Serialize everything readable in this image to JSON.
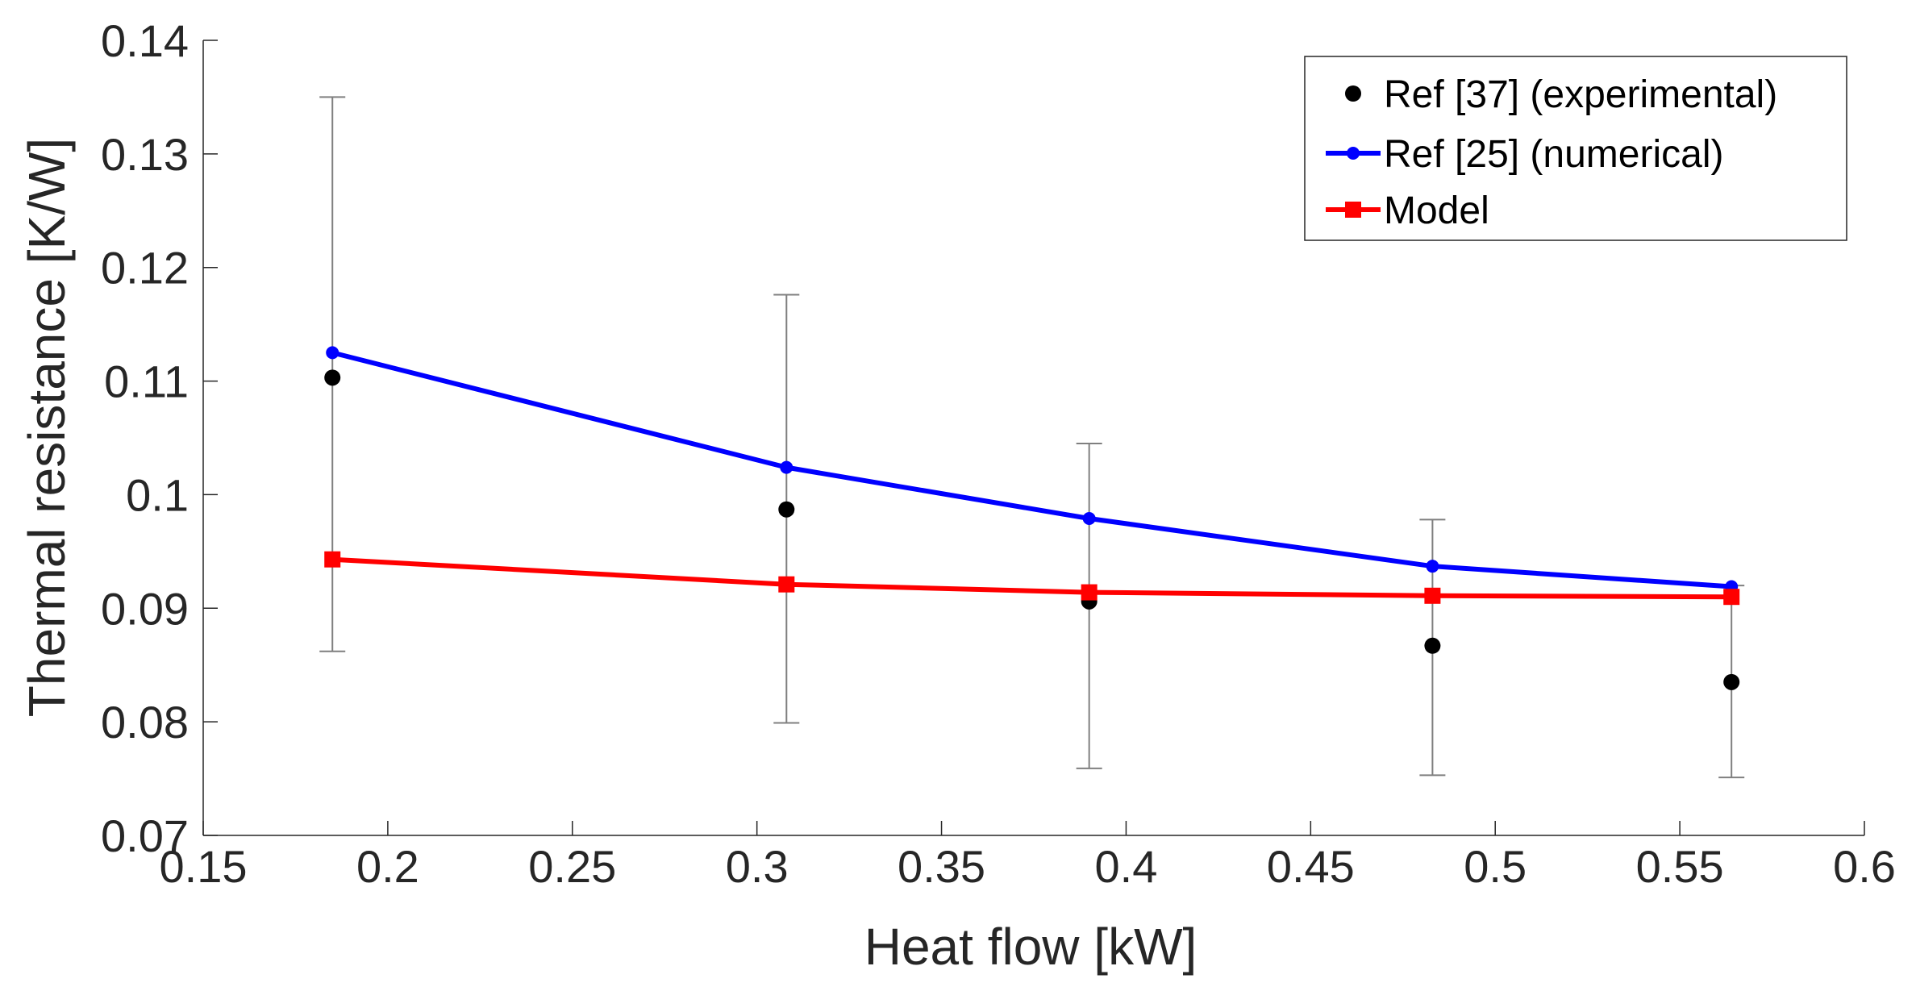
{
  "chart_data": {
    "type": "line",
    "xlabel": "Heat flow [kW]",
    "ylabel": "Thermal resistance [K/W]",
    "xlim": [
      0.15,
      0.6
    ],
    "ylim": [
      0.07,
      0.14
    ],
    "xticks": [
      0.15,
      0.2,
      0.25,
      0.3,
      0.35,
      0.4,
      0.45,
      0.5,
      0.55,
      0.6
    ],
    "xtick_labels": [
      "0.15",
      "0.2",
      "0.25",
      "0.3",
      "0.35",
      "0.4",
      "0.45",
      "0.5",
      "0.55",
      "0.6"
    ],
    "yticks": [
      0.07,
      0.08,
      0.09,
      0.1,
      0.11,
      0.12,
      0.13,
      0.14
    ],
    "ytick_labels": [
      "0.07",
      "0.08",
      "0.09",
      "0.1",
      "0.11",
      "0.12",
      "0.13",
      "0.14"
    ],
    "grid": false,
    "legend_position": "top-right",
    "series": [
      {
        "name": "Ref [37] (experimental)",
        "style": "markers",
        "color": "#000000",
        "x": [
          0.185,
          0.308,
          0.39,
          0.483,
          0.564
        ],
        "y": [
          0.1103,
          0.0987,
          0.0906,
          0.0867,
          0.0835
        ],
        "err_low": [
          0.0862,
          0.0799,
          0.0759,
          0.0753,
          0.0751
        ],
        "err_high": [
          0.135,
          0.1176,
          0.1045,
          0.0978,
          0.092
        ],
        "error_bar_color": "#7f7f7f"
      },
      {
        "name": "Ref [25] (numerical)",
        "style": "line-circle",
        "color": "#0000ff",
        "x": [
          0.185,
          0.308,
          0.39,
          0.483,
          0.564
        ],
        "y": [
          0.1125,
          0.1024,
          0.0979,
          0.0937,
          0.0919
        ]
      },
      {
        "name": "Model",
        "style": "line-square",
        "color": "#ff0000",
        "x": [
          0.185,
          0.308,
          0.39,
          0.483,
          0.564
        ],
        "y": [
          0.0943,
          0.0921,
          0.0914,
          0.0911,
          0.091
        ]
      }
    ]
  }
}
